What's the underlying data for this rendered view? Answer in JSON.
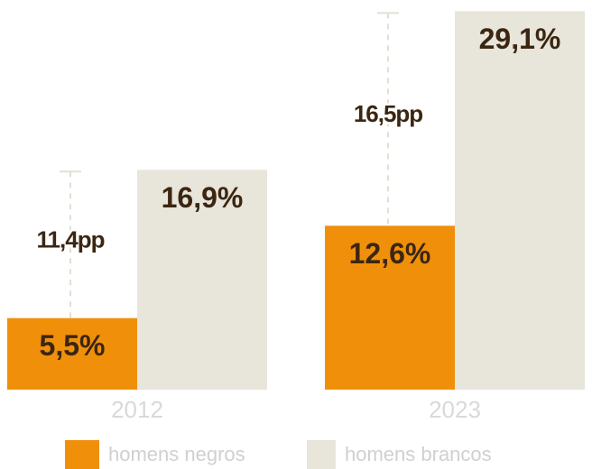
{
  "chart_data": {
    "type": "bar",
    "categories": [
      "2012",
      "2023"
    ],
    "series": [
      {
        "name": "homens negros",
        "color": "#f0900a",
        "values": [
          5.5,
          12.6
        ],
        "value_labels": [
          "5,5%",
          "12,6%"
        ]
      },
      {
        "name": "homens brancos",
        "color": "#e8e5da",
        "values": [
          16.9,
          29.1
        ],
        "value_labels": [
          "16,9%",
          "29,1%"
        ]
      }
    ],
    "annotations": [
      {
        "value": 11.4,
        "label": "11,4pp"
      },
      {
        "value": 16.5,
        "label": "16,5pp"
      }
    ],
    "legend": "bottom"
  }
}
